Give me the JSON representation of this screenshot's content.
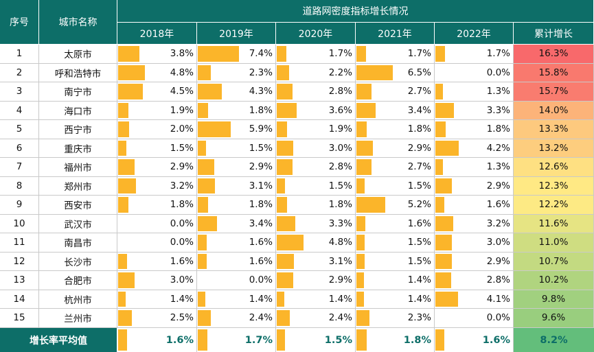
{
  "header": {
    "seq": "序号",
    "city": "城市名称",
    "group_title": "道路网密度指标增长情况",
    "years": [
      "2018年",
      "2019年",
      "2020年",
      "2021年",
      "2022年"
    ],
    "cumulative": "累计增长"
  },
  "rows": [
    {
      "seq": "1",
      "city": "太原市",
      "vals": [
        "3.8%",
        "7.4%",
        "1.7%",
        "1.7%",
        "1.7%"
      ],
      "cum": "16.3%"
    },
    {
      "seq": "2",
      "city": "呼和浩特市",
      "vals": [
        "4.8%",
        "2.3%",
        "2.2%",
        "6.5%",
        "0.0%"
      ],
      "cum": "15.8%"
    },
    {
      "seq": "3",
      "city": "南宁市",
      "vals": [
        "4.5%",
        "4.3%",
        "2.8%",
        "2.7%",
        "1.3%"
      ],
      "cum": "15.7%"
    },
    {
      "seq": "4",
      "city": "海口市",
      "vals": [
        "1.9%",
        "1.8%",
        "3.6%",
        "3.4%",
        "3.3%"
      ],
      "cum": "14.0%"
    },
    {
      "seq": "5",
      "city": "西宁市",
      "vals": [
        "2.0%",
        "5.9%",
        "1.9%",
        "1.8%",
        "1.8%"
      ],
      "cum": "13.3%"
    },
    {
      "seq": "6",
      "city": "重庆市",
      "vals": [
        "1.5%",
        "1.5%",
        "3.0%",
        "2.9%",
        "4.2%"
      ],
      "cum": "13.2%"
    },
    {
      "seq": "7",
      "city": "福州市",
      "vals": [
        "2.9%",
        "2.9%",
        "2.8%",
        "2.7%",
        "1.3%"
      ],
      "cum": "12.6%"
    },
    {
      "seq": "8",
      "city": "郑州市",
      "vals": [
        "3.2%",
        "3.1%",
        "1.5%",
        "1.5%",
        "2.9%"
      ],
      "cum": "12.3%"
    },
    {
      "seq": "9",
      "city": "西安市",
      "vals": [
        "1.8%",
        "1.8%",
        "1.8%",
        "5.2%",
        "1.6%"
      ],
      "cum": "12.2%"
    },
    {
      "seq": "10",
      "city": "武汉市",
      "vals": [
        "0.0%",
        "3.4%",
        "3.3%",
        "1.6%",
        "3.2%"
      ],
      "cum": "11.6%"
    },
    {
      "seq": "11",
      "city": "南昌市",
      "vals": [
        "0.0%",
        "1.6%",
        "4.8%",
        "1.5%",
        "3.0%"
      ],
      "cum": "11.0%"
    },
    {
      "seq": "12",
      "city": "长沙市",
      "vals": [
        "1.6%",
        "1.6%",
        "3.1%",
        "1.5%",
        "2.9%"
      ],
      "cum": "10.7%"
    },
    {
      "seq": "13",
      "city": "合肥市",
      "vals": [
        "3.0%",
        "0.0%",
        "2.9%",
        "1.4%",
        "2.8%"
      ],
      "cum": "10.2%"
    },
    {
      "seq": "14",
      "city": "杭州市",
      "vals": [
        "1.4%",
        "1.4%",
        "1.4%",
        "1.4%",
        "4.1%"
      ],
      "cum": "9.8%"
    },
    {
      "seq": "15",
      "city": "兰州市",
      "vals": [
        "2.5%",
        "2.4%",
        "2.4%",
        "2.3%",
        "0.0%"
      ],
      "cum": "9.6%"
    }
  ],
  "footer": {
    "label": "增长率平均值",
    "vals": [
      "1.6%",
      "1.7%",
      "1.5%",
      "1.8%",
      "1.6%"
    ],
    "cum": "8.2%"
  },
  "colors": {
    "header_bg": "#0d6e68",
    "bar": "#fbb52a",
    "scale_high": "#f8696b",
    "scale_mid": "#ffeb84",
    "scale_low": "#63be7b"
  }
}
